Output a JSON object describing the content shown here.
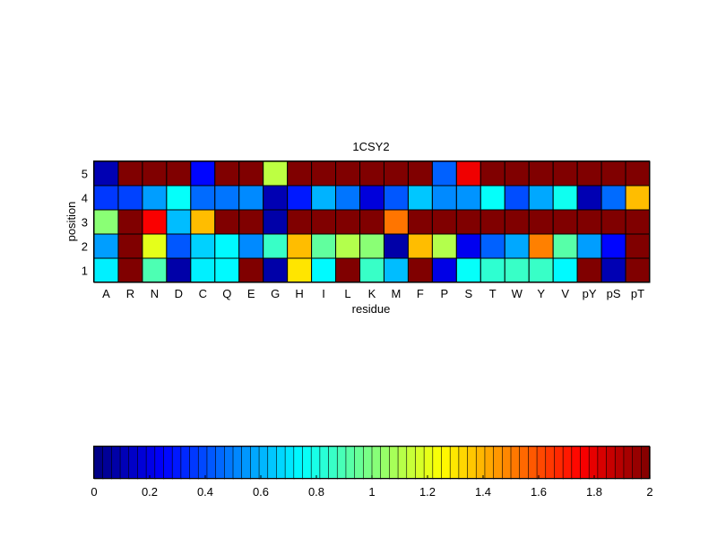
{
  "chart_data": {
    "type": "heatmap",
    "title": "1CSY2",
    "xlabel": "residue",
    "ylabel": "position",
    "x_categories": [
      "A",
      "R",
      "N",
      "D",
      "C",
      "Q",
      "E",
      "G",
      "H",
      "I",
      "L",
      "K",
      "M",
      "F",
      "P",
      "S",
      "T",
      "W",
      "Y",
      "V",
      "pY",
      "pS",
      "pT"
    ],
    "y_categories": [
      "1",
      "2",
      "3",
      "4",
      "5"
    ],
    "values": [
      [
        0.72,
        2.0,
        0.9,
        0.08,
        0.72,
        0.74,
        2.0,
        0.08,
        1.3,
        0.74,
        2.0,
        0.86,
        0.62,
        2.0,
        0.2,
        0.76,
        0.84,
        0.86,
        0.86,
        0.74,
        2.0,
        0.1,
        2.0
      ],
      [
        0.56,
        2.0,
        1.2,
        0.42,
        0.66,
        0.74,
        0.52,
        0.86,
        1.38,
        0.94,
        1.1,
        1.02,
        0.08,
        1.38,
        1.1,
        0.22,
        0.44,
        0.58,
        1.5,
        0.92,
        0.56,
        0.26,
        2.0
      ],
      [
        1.02,
        2.0,
        1.76,
        0.62,
        1.38,
        2.0,
        2.0,
        0.08,
        2.0,
        2.0,
        2.0,
        2.0,
        1.52,
        2.0,
        2.0,
        2.0,
        2.0,
        2.0,
        2.0,
        2.0,
        2.0,
        2.0,
        2.0
      ],
      [
        0.36,
        0.38,
        0.56,
        0.76,
        0.46,
        0.48,
        0.52,
        0.1,
        0.3,
        0.6,
        0.48,
        0.18,
        0.42,
        0.64,
        0.52,
        0.54,
        0.76,
        0.4,
        0.58,
        0.78,
        0.1,
        0.46,
        1.38
      ],
      [
        0.1,
        2.0,
        2.0,
        2.0,
        0.26,
        2.0,
        2.0,
        1.12,
        2.0,
        2.0,
        2.0,
        2.0,
        2.0,
        2.0,
        0.44,
        1.78,
        2.0,
        2.0,
        2.0,
        2.0,
        2.0,
        2.0,
        2.0
      ]
    ],
    "colormap": "jet",
    "clim": [
      0,
      2
    ],
    "colorbar": {
      "orientation": "horizontal",
      "placement": "bottom",
      "ticks": [
        0,
        0.2,
        0.4,
        0.6,
        0.8,
        1,
        1.2,
        1.4,
        1.6,
        1.8,
        2
      ],
      "tick_labels": [
        "0",
        "0.2",
        "0.4",
        "0.6",
        "0.8",
        "1",
        "1.2",
        "1.4",
        "1.6",
        "1.8",
        "2"
      ]
    }
  }
}
